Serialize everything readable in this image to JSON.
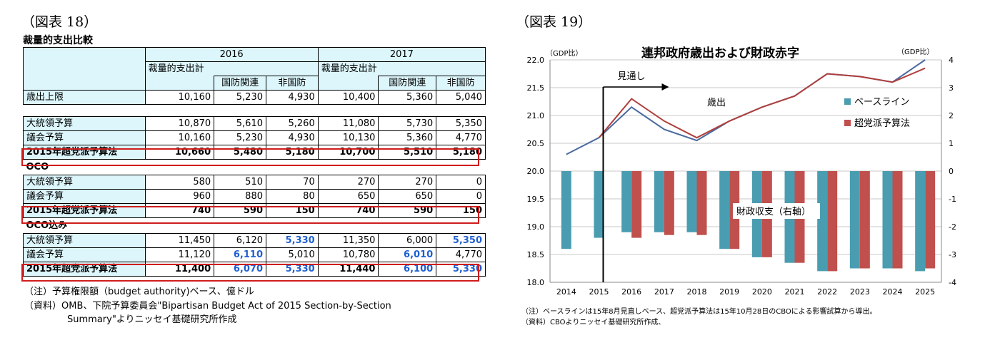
{
  "left": {
    "figure_label": "（図表 18）",
    "table_title": "裁量的支出比較",
    "header": {
      "year_2016": "2016",
      "year_2017": "2017",
      "total_2016": "裁量的支出計",
      "total_2017": "裁量的支出計",
      "defense": "国防関連",
      "nondefense": "非国防"
    },
    "rows": {
      "cap": {
        "label": "歳出上限",
        "v": [
          "10,160",
          "5,230",
          "4,930",
          "10,400",
          "5,360",
          "5,040"
        ]
      },
      "base_pres": {
        "label": "大統領予算",
        "v": [
          "10,870",
          "5,610",
          "5,260",
          "11,080",
          "5,730",
          "5,350"
        ]
      },
      "base_cong": {
        "label": "議会予算",
        "v": [
          "10,160",
          "5,230",
          "4,930",
          "10,130",
          "5,360",
          "4,770"
        ]
      },
      "base_act": {
        "label": "2015年超党派予算法",
        "v": [
          "10,660",
          "5,480",
          "5,180",
          "10,700",
          "5,510",
          "5,180"
        ]
      },
      "oco_head": "OCO",
      "oco_pres": {
        "label": "大統領予算",
        "v": [
          "580",
          "510",
          "70",
          "270",
          "270",
          "0"
        ]
      },
      "oco_cong": {
        "label": "議会予算",
        "v": [
          "960",
          "880",
          "80",
          "650",
          "650",
          "0"
        ]
      },
      "oco_act": {
        "label": "2015年超党派予算法",
        "v": [
          "740",
          "590",
          "150",
          "740",
          "590",
          "150"
        ]
      },
      "inc_head": "OCO込み",
      "inc_pres": {
        "label": "大統領予算",
        "v": [
          "11,450",
          "6,120",
          "5,330",
          "11,350",
          "6,000",
          "5,350"
        ]
      },
      "inc_cong": {
        "label": "議会予算",
        "v": [
          "11,120",
          "6,110",
          "5,010",
          "10,780",
          "6,010",
          "4,770"
        ]
      },
      "inc_act": {
        "label": "2015年超党派予算法",
        "v": [
          "11,400",
          "6,070",
          "5,330",
          "11,440",
          "6,100",
          "5,330"
        ]
      }
    },
    "notes": [
      "（注）予算権限額（budget authority)ベース、億ドル",
      "（資料）OMB、下院予算委員会\"Bipartisan Budget Act of 2015 Section-by-Section",
      "Summary\"よりニッセイ基礎研究所作成"
    ],
    "colors": {
      "header_fill": "#dcf6fb",
      "highlight_box": "#d01c1c",
      "emphasis_text": "#1f5fd0"
    }
  },
  "right": {
    "figure_label": "（図表 19）",
    "notes": [
      "（注）ベースラインは15年8月見直しベース、超党派予算法は15年10月28日のCBOによる影響試算から導出。",
      "（資料）CBOよりニッセイ基礎研究所作成、"
    ]
  },
  "chart_data": {
    "type": "bar",
    "title": "連邦政府歳出および財政赤字",
    "left_axis_unit": "（GDP比）",
    "right_axis_unit": "（GDP比）",
    "categories": [
      "2014",
      "2015",
      "2016",
      "2017",
      "2018",
      "2019",
      "2020",
      "2021",
      "2022",
      "2023",
      "2024",
      "2025"
    ],
    "ylim_left": [
      18.0,
      22.0
    ],
    "ylim_right": [
      -4,
      4
    ],
    "left_ticks": [
      "22.0",
      "21.5",
      "21.0",
      "20.5",
      "20.0",
      "19.5",
      "19.0",
      "18.5",
      "18.0"
    ],
    "right_ticks": [
      "4",
      "3",
      "2",
      "1",
      "0",
      "-1",
      "-2",
      "-3",
      "-4"
    ],
    "series": [
      {
        "name": "ベースライン",
        "kind": "bar",
        "axis": "right",
        "color": "#4a9db0",
        "values": [
          -2.8,
          -2.4,
          -2.2,
          -2.2,
          -2.2,
          -2.8,
          -3.1,
          -3.3,
          -3.6,
          -3.5,
          -3.5,
          -3.6
        ]
      },
      {
        "name": "超党派予算法",
        "kind": "bar",
        "axis": "right",
        "color": "#c0504d",
        "values": [
          null,
          null,
          -2.4,
          -2.3,
          -2.3,
          -2.8,
          -3.1,
          -3.3,
          -3.6,
          -3.5,
          -3.5,
          -3.5
        ]
      },
      {
        "name": "ベースライン",
        "kind": "line",
        "axis": "left",
        "color": "#4a6aa0",
        "values": [
          20.3,
          20.6,
          21.15,
          20.75,
          20.55,
          20.9,
          21.15,
          21.35,
          21.75,
          21.7,
          21.6,
          22.0
        ]
      },
      {
        "name": "超党派予算法",
        "kind": "line",
        "axis": "left",
        "color": "#b0403d",
        "values": [
          null,
          20.6,
          21.3,
          20.9,
          20.6,
          20.9,
          21.15,
          21.35,
          21.75,
          21.7,
          21.6,
          21.85
        ]
      }
    ],
    "legend": [
      "ベースライン",
      "超党派予算法"
    ],
    "legend_position": "top-right",
    "annotations": {
      "outlook": "見通し",
      "expenditure": "歳出",
      "balance": "財政収支（右軸）"
    },
    "grid": true
  }
}
